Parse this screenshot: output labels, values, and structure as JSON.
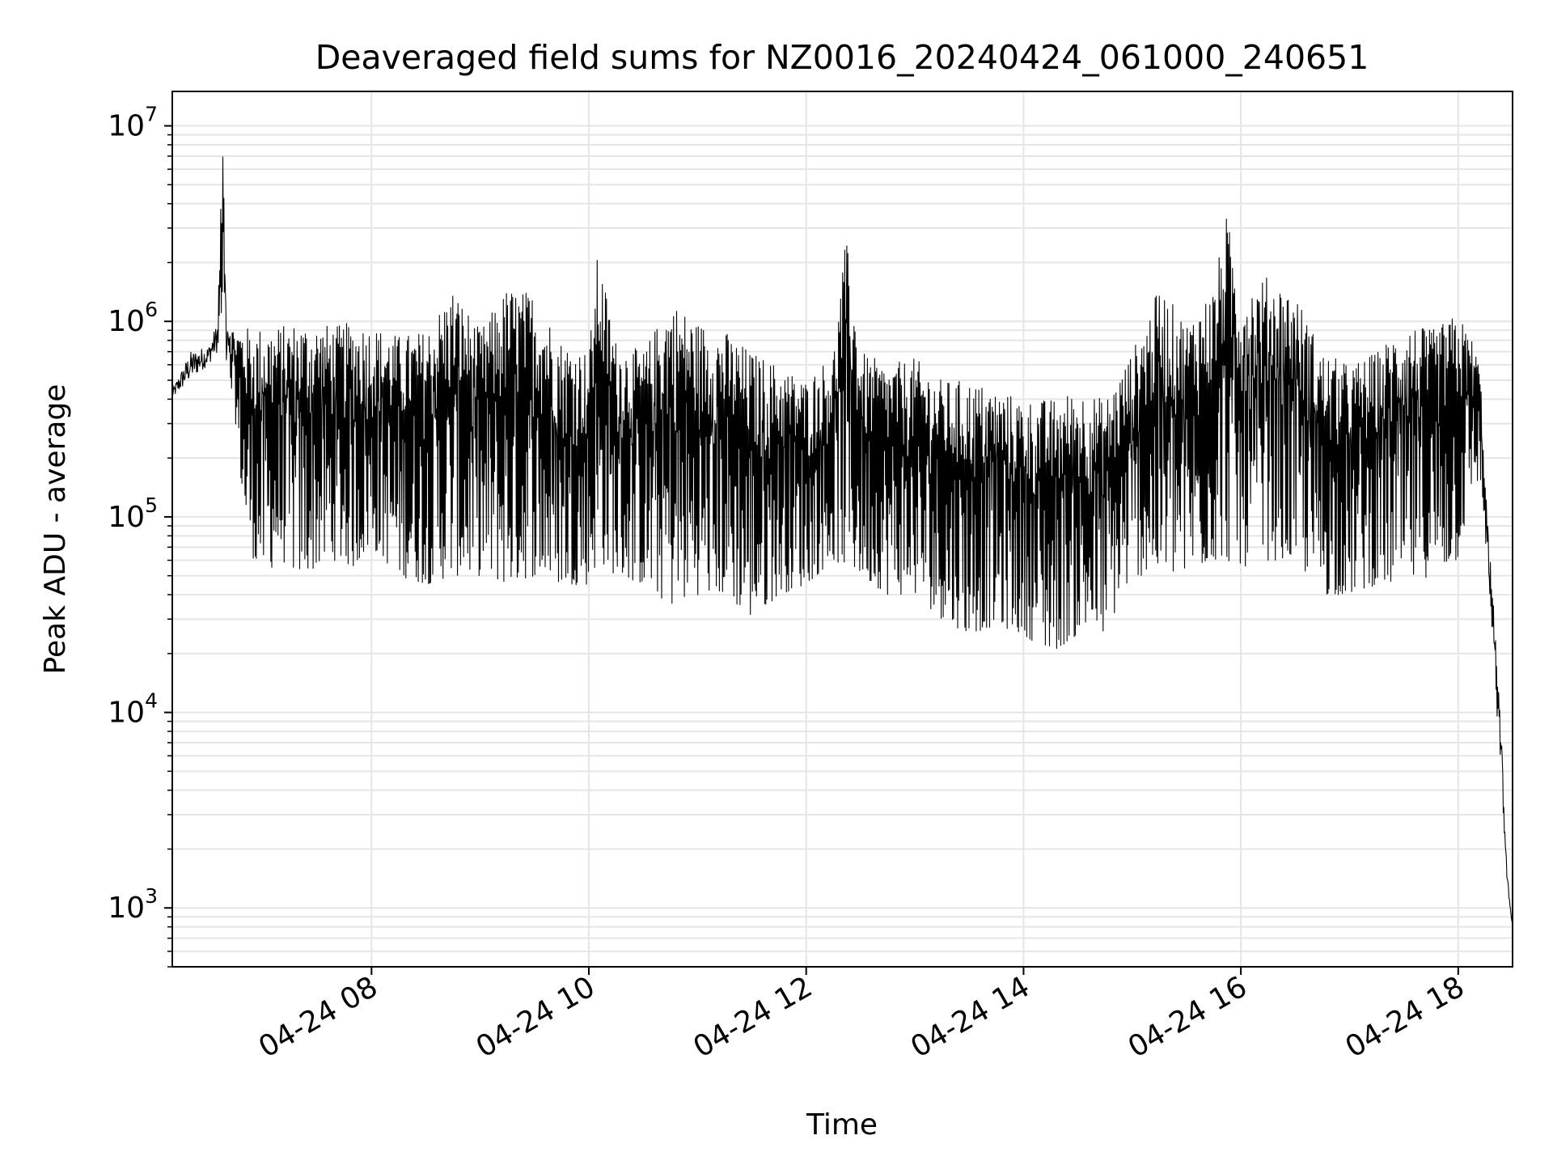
{
  "chart_data": {
    "type": "line",
    "title": "Deaveraged field sums for NZ0016_20240424_061000_240651",
    "xlabel": "Time",
    "ylabel": "Peak ADU - average",
    "yscale": "log",
    "ylim": [
      500,
      15000000
    ],
    "xlim": [
      "2024-04-24 06:10",
      "2024-04-24 18:30"
    ],
    "grid": true,
    "grid_color": "#e5e5e5",
    "line_color": "#000000",
    "x_ticks": [
      {
        "x": "2024-04-24 08:00",
        "label": "04-24 08"
      },
      {
        "x": "2024-04-24 10:00",
        "label": "04-24 10"
      },
      {
        "x": "2024-04-24 12:00",
        "label": "04-24 12"
      },
      {
        "x": "2024-04-24 14:00",
        "label": "04-24 14"
      },
      {
        "x": "2024-04-24 16:00",
        "label": "04-24 16"
      },
      {
        "x": "2024-04-24 18:00",
        "label": "04-24 18"
      }
    ],
    "y_ticks": [
      {
        "value": 1000,
        "base": "10",
        "exp": "3"
      },
      {
        "value": 10000,
        "base": "10",
        "exp": "4"
      },
      {
        "value": 100000,
        "base": "10",
        "exp": "5"
      },
      {
        "value": 1000000,
        "base": "10",
        "exp": "6"
      },
      {
        "value": 10000000,
        "base": "10",
        "exp": "7"
      }
    ],
    "series": [
      {
        "x": [
          "2024-04-24 06:10",
          "2024-04-24 06:20",
          "2024-04-24 06:30",
          "2024-04-24 06:35",
          "2024-04-24 06:38",
          "2024-04-24 06:40",
          "2024-04-24 06:45",
          "2024-04-24 06:50",
          "2024-04-24 06:55",
          "2024-04-24 07:00",
          "2024-04-24 07:10",
          "2024-04-24 07:20",
          "2024-04-24 07:30",
          "2024-04-24 07:40",
          "2024-04-24 07:50",
          "2024-04-24 08:00",
          "2024-04-24 08:15",
          "2024-04-24 08:30",
          "2024-04-24 08:45",
          "2024-04-24 09:00",
          "2024-04-24 09:15",
          "2024-04-24 09:30",
          "2024-04-24 09:45",
          "2024-04-24 10:00",
          "2024-04-24 10:05",
          "2024-04-24 10:15",
          "2024-04-24 10:30",
          "2024-04-24 10:45",
          "2024-04-24 11:00",
          "2024-04-24 11:15",
          "2024-04-24 11:30",
          "2024-04-24 11:45",
          "2024-04-24 12:00",
          "2024-04-24 12:15",
          "2024-04-24 12:22",
          "2024-04-24 12:30",
          "2024-04-24 12:45",
          "2024-04-24 13:00",
          "2024-04-24 13:15",
          "2024-04-24 13:30",
          "2024-04-24 13:45",
          "2024-04-24 14:00",
          "2024-04-24 14:15",
          "2024-04-24 14:30",
          "2024-04-24 14:45",
          "2024-04-24 15:00",
          "2024-04-24 15:15",
          "2024-04-24 15:30",
          "2024-04-24 15:45",
          "2024-04-24 15:52",
          "2024-04-24 16:00",
          "2024-04-24 16:15",
          "2024-04-24 16:30",
          "2024-04-24 16:45",
          "2024-04-24 17:00",
          "2024-04-24 17:15",
          "2024-04-24 17:30",
          "2024-04-24 17:45",
          "2024-04-24 18:00",
          "2024-04-24 18:08",
          "2024-04-24 18:12",
          "2024-04-24 18:16",
          "2024-04-24 18:20",
          "2024-04-24 18:24",
          "2024-04-24 18:27",
          "2024-04-24 18:30"
        ],
        "upper": [
          450000,
          700000,
          750000,
          1000000,
          9500000,
          1000000,
          900000,
          950000,
          900000,
          950000,
          950000,
          1000000,
          980000,
          950000,
          1000000,
          950000,
          850000,
          900000,
          1500000,
          900000,
          1500000,
          1400000,
          800000,
          700000,
          2300000,
          800000,
          700000,
          1300000,
          1000000,
          900000,
          700000,
          600000,
          500000,
          700000,
          2700000,
          700000,
          600000,
          650000,
          500000,
          500000,
          450000,
          400000,
          400000,
          450000,
          400000,
          700000,
          1500000,
          1000000,
          1500000,
          3500000,
          1500000,
          1700000,
          1400000,
          700000,
          600000,
          700000,
          1000000,
          900000,
          1100000,
          800000,
          600000,
          100000,
          30000,
          7000,
          1500,
          800
        ],
        "lower": [
          400000,
          500000,
          600000,
          700000,
          700000,
          600000,
          300000,
          90000,
          60000,
          50000,
          60000,
          50000,
          55000,
          60000,
          55000,
          70000,
          50000,
          45000,
          50000,
          50000,
          45000,
          50000,
          45000,
          45000,
          60000,
          50000,
          45000,
          35000,
          40000,
          40000,
          30000,
          40000,
          45000,
          60000,
          55000,
          50000,
          40000,
          40000,
          30000,
          25000,
          28000,
          25000,
          20000,
          25000,
          25000,
          50000,
          50000,
          50000,
          60000,
          60000,
          55000,
          60000,
          60000,
          40000,
          40000,
          45000,
          45000,
          50000,
          60000,
          150000,
          150000,
          60000,
          15000,
          4000,
          1300,
          800
        ]
      }
    ]
  }
}
